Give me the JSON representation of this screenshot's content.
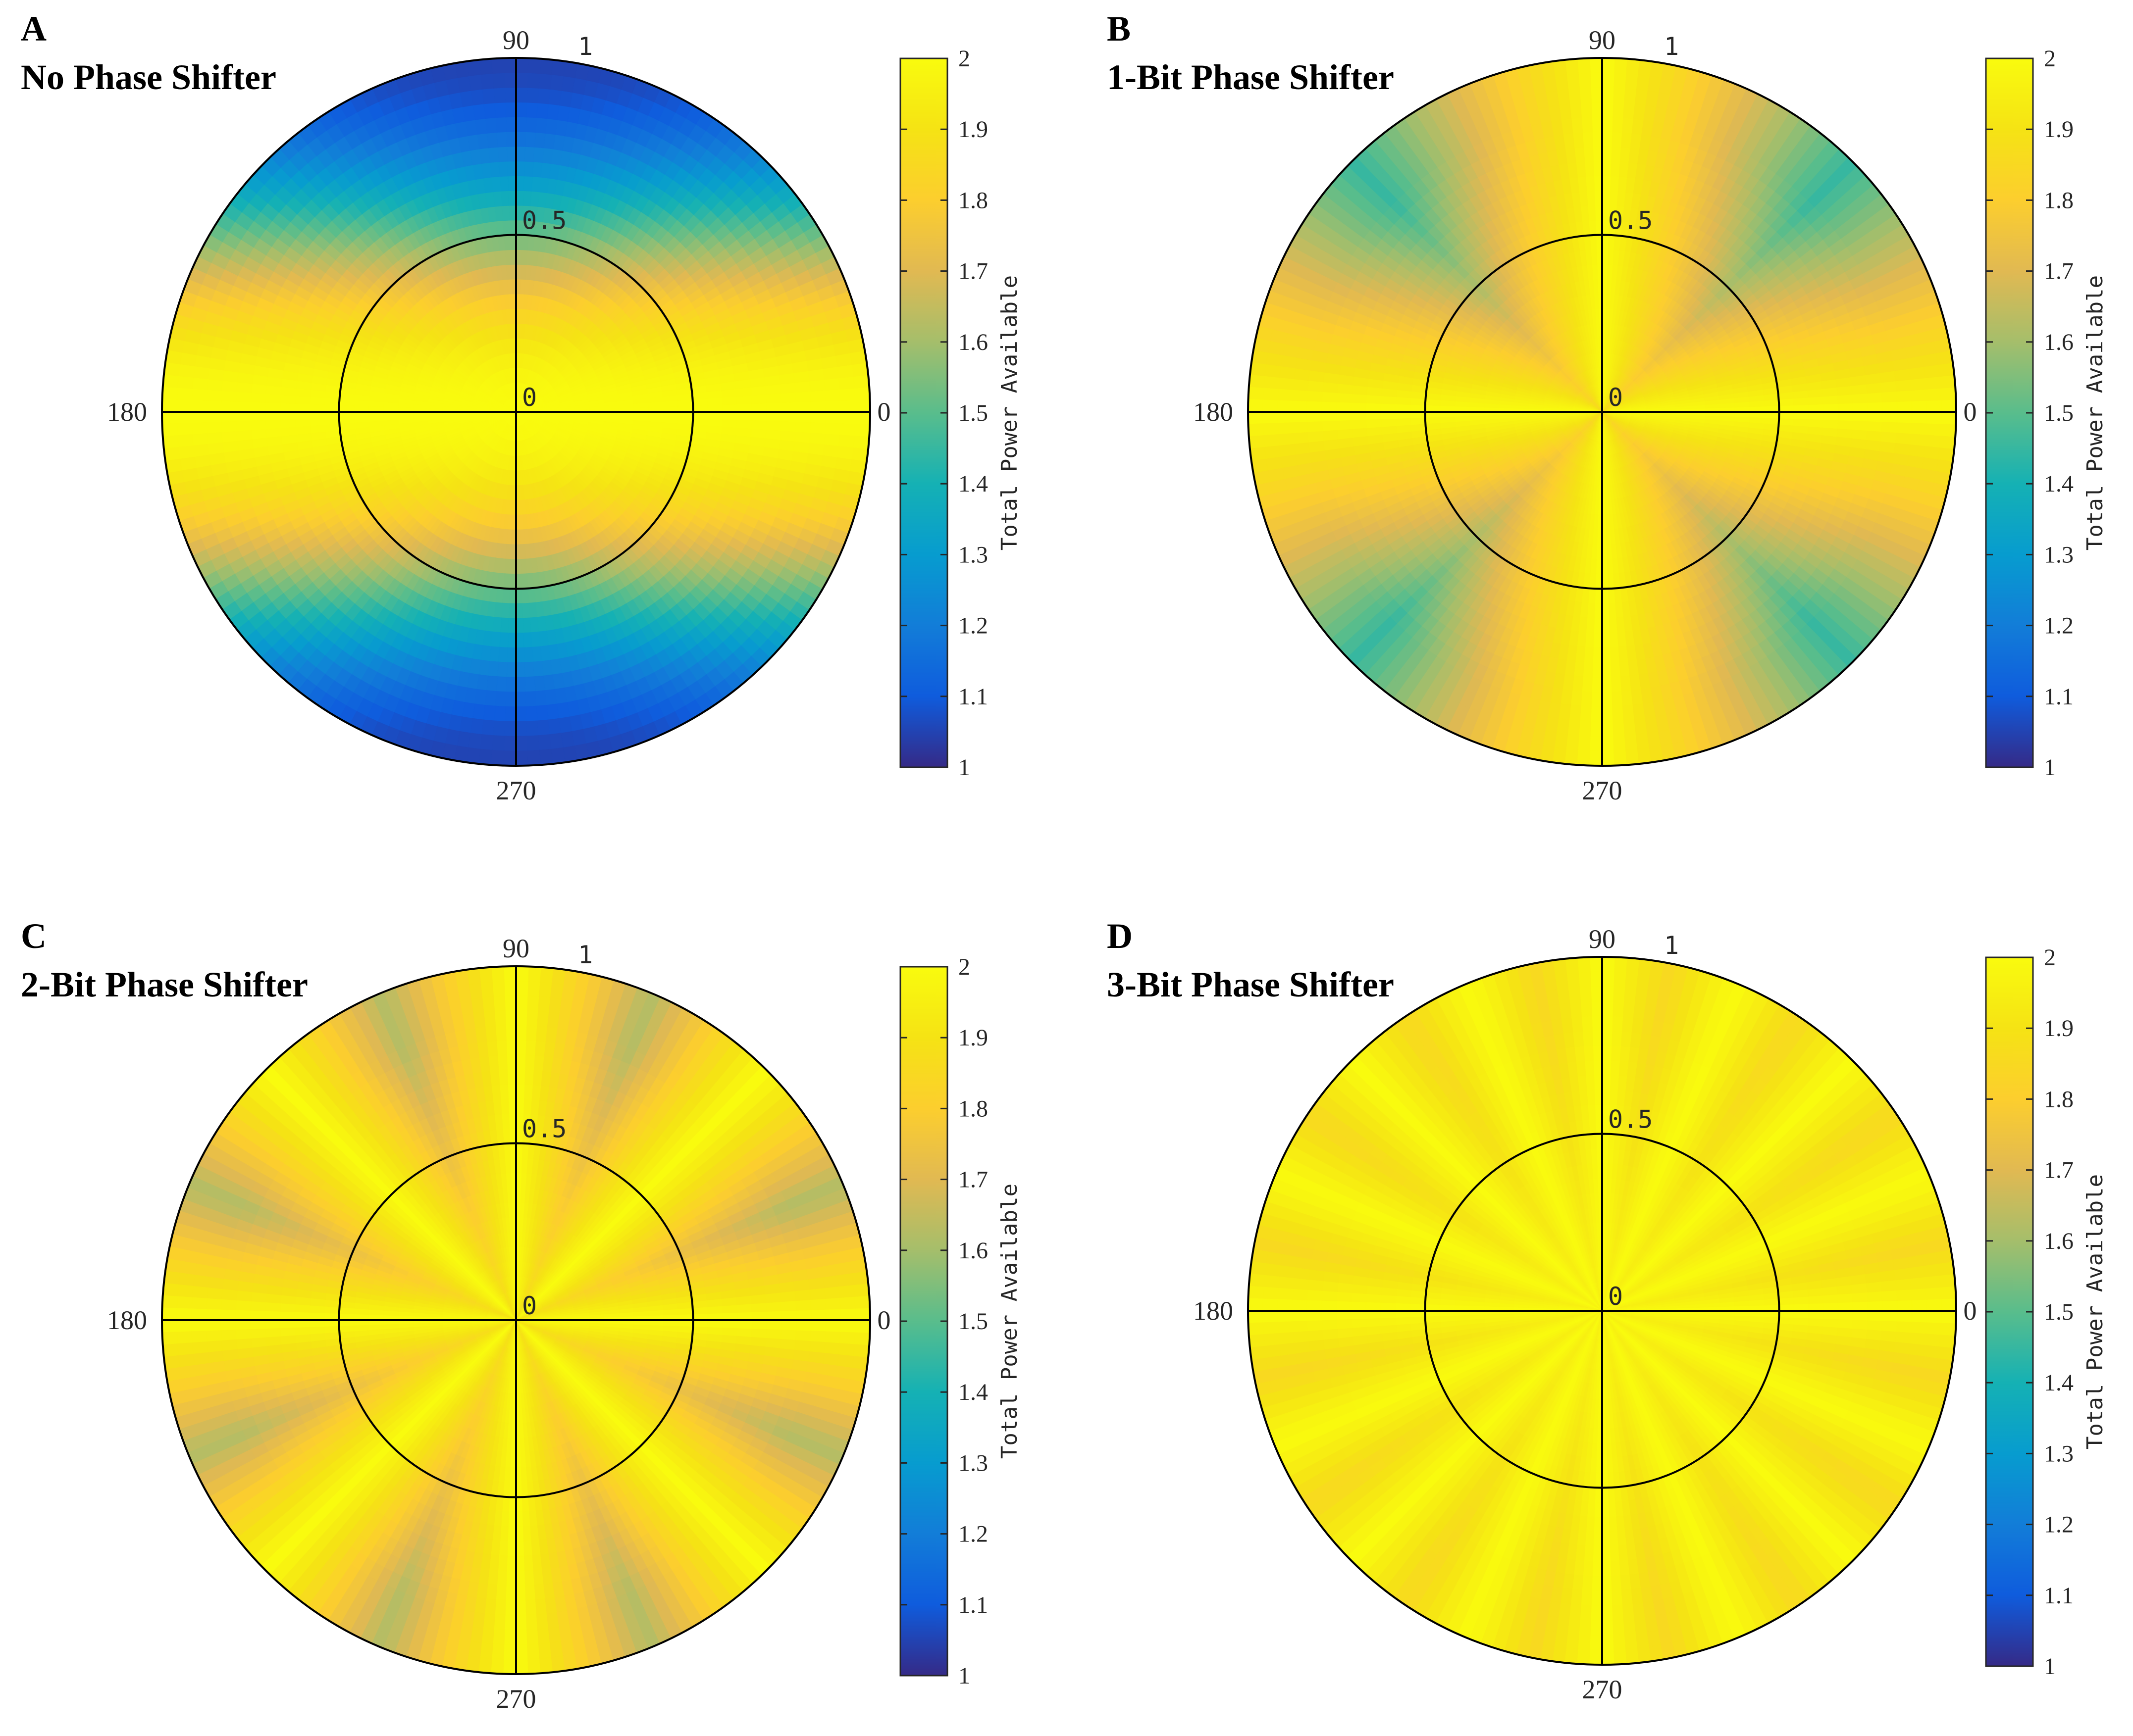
{
  "chart_data": [
    {
      "type": "heatmap",
      "panel_letter": "A",
      "title": "No Phase Shifter",
      "projection": "polar",
      "theta_tick_labels": [
        "0",
        "90",
        "180",
        "270"
      ],
      "r_tick_labels": [
        "0",
        "0.5",
        "1"
      ],
      "rlim": [
        0,
        1
      ],
      "colorbar": {
        "label": "Total Power Available",
        "clim": [
          1,
          2
        ],
        "tick_labels": [
          "1",
          "1.1",
          "1.2",
          "1.3",
          "1.4",
          "1.5",
          "1.6",
          "1.7",
          "1.8",
          "1.9",
          "2"
        ],
        "colormap": "parula"
      },
      "phase_bits": 0,
      "value_at_axis_0_180": 2.0,
      "value_at_axis_90_270": 1.05
    },
    {
      "type": "heatmap",
      "panel_letter": "B",
      "title": "1-Bit Phase Shifter",
      "projection": "polar",
      "theta_tick_labels": [
        "0",
        "90",
        "180",
        "270"
      ],
      "r_tick_labels": [
        "0",
        "0.5",
        "1"
      ],
      "rlim": [
        0,
        1
      ],
      "colorbar": {
        "label": "Total Power Available",
        "clim": [
          1,
          2
        ],
        "tick_labels": [
          "1",
          "1.1",
          "1.2",
          "1.3",
          "1.4",
          "1.5",
          "1.6",
          "1.7",
          "1.8",
          "1.9",
          "2"
        ],
        "colormap": "parula"
      },
      "phase_bits": 1,
      "min_value": 1.45,
      "max_value": 2.0
    },
    {
      "type": "heatmap",
      "panel_letter": "C",
      "title": "2-Bit Phase Shifter",
      "projection": "polar",
      "theta_tick_labels": [
        "0",
        "90",
        "180",
        "270"
      ],
      "r_tick_labels": [
        "0",
        "0.5",
        "1"
      ],
      "rlim": [
        0,
        1
      ],
      "colorbar": {
        "label": "Total Power Available",
        "clim": [
          1,
          2
        ],
        "tick_labels": [
          "1",
          "1.1",
          "1.2",
          "1.3",
          "1.4",
          "1.5",
          "1.6",
          "1.7",
          "1.8",
          "1.9",
          "2"
        ],
        "colormap": "parula"
      },
      "phase_bits": 2,
      "min_value": 1.62,
      "max_value": 2.0
    },
    {
      "type": "heatmap",
      "panel_letter": "D",
      "title": "3-Bit Phase Shifter",
      "projection": "polar",
      "theta_tick_labels": [
        "0",
        "90",
        "180",
        "270"
      ],
      "r_tick_labels": [
        "0",
        "0.5",
        "1"
      ],
      "rlim": [
        0,
        1
      ],
      "colorbar": {
        "label": "Total Power Available",
        "clim": [
          1,
          2
        ],
        "tick_labels": [
          "1",
          "1.1",
          "1.2",
          "1.3",
          "1.4",
          "1.5",
          "1.6",
          "1.7",
          "1.8",
          "1.9",
          "2"
        ],
        "colormap": "parula"
      },
      "phase_bits": 3,
      "min_value": 1.85,
      "max_value": 2.0
    }
  ]
}
